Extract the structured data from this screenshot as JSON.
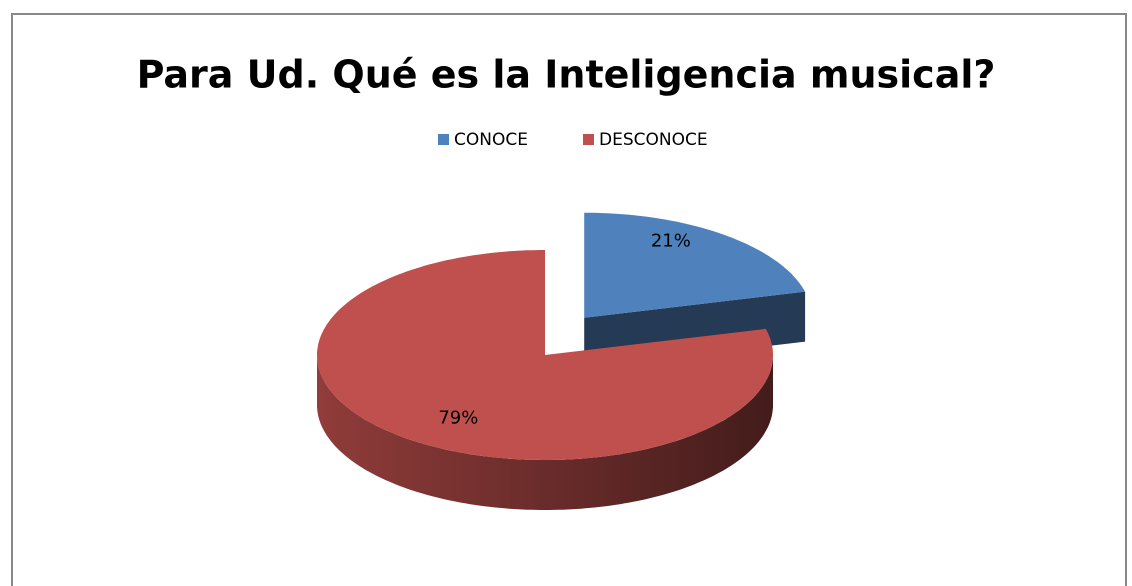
{
  "chart_data": {
    "type": "pie",
    "title": "Para Ud. Qué es la Inteligencia musical?",
    "categories": [
      "CONOCE",
      "DESCONOCE"
    ],
    "values": [
      21,
      79
    ],
    "value_labels": [
      "21%",
      "79%"
    ],
    "colors": [
      "#4f81bd",
      "#c0504d"
    ],
    "legend": "top"
  }
}
